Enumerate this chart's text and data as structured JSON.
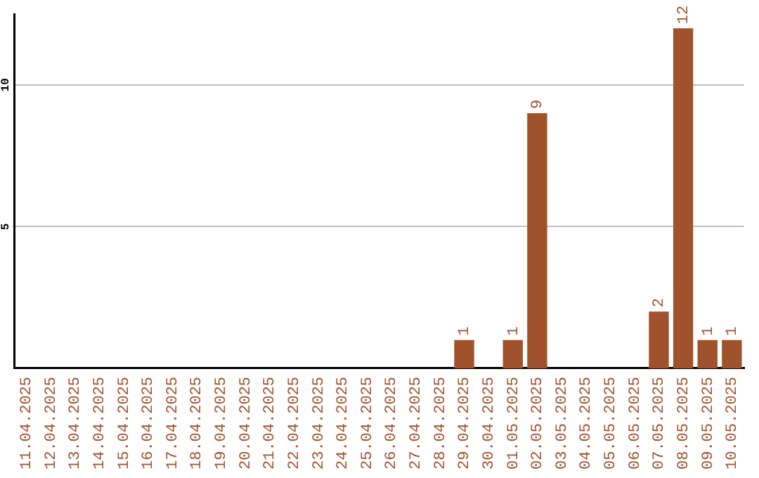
{
  "chart_data": {
    "type": "bar",
    "categories": [
      "11.04.2025",
      "12.04.2025",
      "13.04.2025",
      "14.04.2025",
      "15.04.2025",
      "16.04.2025",
      "17.04.2025",
      "18.04.2025",
      "19.04.2025",
      "20.04.2025",
      "21.04.2025",
      "22.04.2025",
      "23.04.2025",
      "24.04.2025",
      "25.04.2025",
      "26.04.2025",
      "27.04.2025",
      "28.04.2025",
      "29.04.2025",
      "30.04.2025",
      "01.05.2025",
      "02.05.2025",
      "03.05.2025",
      "04.05.2025",
      "05.05.2025",
      "06.05.2025",
      "07.05.2025",
      "08.05.2025",
      "09.05.2025",
      "10.05.2025"
    ],
    "values": [
      0,
      0,
      0,
      0,
      0,
      0,
      0,
      0,
      0,
      0,
      0,
      0,
      0,
      0,
      0,
      0,
      0,
      0,
      1,
      0,
      1,
      9,
      0,
      0,
      0,
      0,
      2,
      12,
      1,
      1
    ],
    "value_labels": [
      null,
      null,
      null,
      null,
      null,
      null,
      null,
      null,
      null,
      null,
      null,
      null,
      null,
      null,
      null,
      null,
      null,
      null,
      "1",
      null,
      "1",
      "9",
      null,
      null,
      null,
      null,
      "2",
      "12",
      "1",
      "1"
    ],
    "color": "#a0522d",
    "ylim": [
      0,
      12.5
    ],
    "yticks": [
      5,
      10
    ],
    "grid": "y",
    "legend": false
  }
}
